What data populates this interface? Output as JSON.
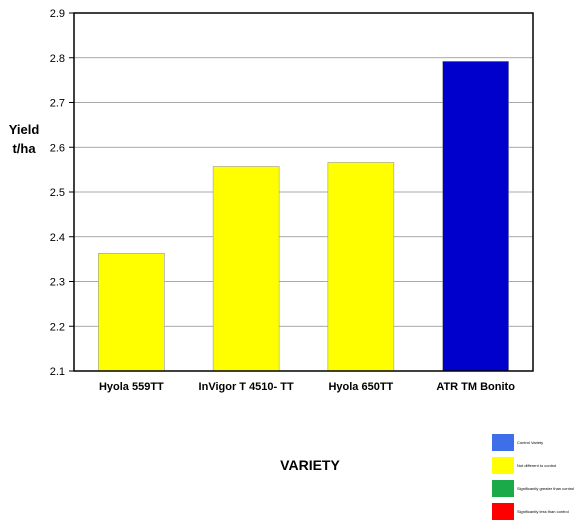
{
  "chart_data": {
    "type": "bar",
    "title": "",
    "xlabel": "VARIETY",
    "ylabel_line1": "Yield",
    "ylabel_line2": "t/ha",
    "ylim": [
      2.1,
      2.9
    ],
    "yticks": [
      "2.1",
      "2.2",
      "2.3",
      "2.4",
      "2.5",
      "2.6",
      "2.7",
      "2.8",
      "2.9"
    ],
    "grid": true,
    "categories": [
      "Hyola 559TT",
      "InVigor T 4510- TT",
      "Hyola 650TT",
      "ATR TM Bonito"
    ],
    "values": [
      2.363,
      2.557,
      2.566,
      2.792
    ],
    "bar_colors": [
      "#ffff00",
      "#ffff00",
      "#ffff00",
      "#0000cc"
    ]
  },
  "legend": {
    "placement": "bottom-right",
    "items": [
      {
        "label": "Control Variety",
        "color": "#3f6fe8"
      },
      {
        "label": "Not different to control",
        "color": "#ffff00"
      },
      {
        "label": "Significantly greater than control",
        "color": "#1aaa4a"
      },
      {
        "label": "Significantly less than control",
        "color": "#ff0000"
      }
    ]
  }
}
